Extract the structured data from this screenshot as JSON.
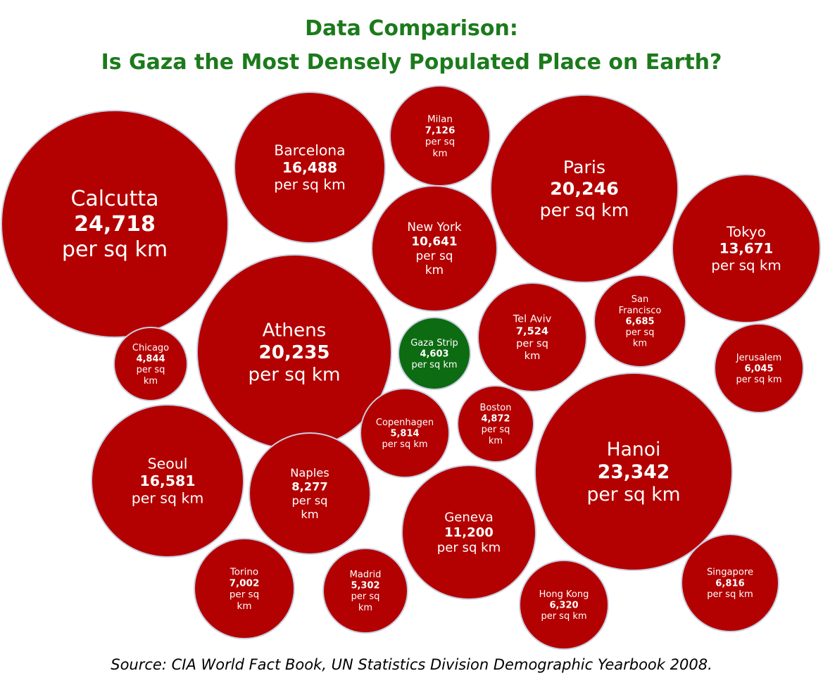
{
  "title": "Data Comparison:",
  "subtitle": "Is Gaza the Most Densely Populated Place on Earth?",
  "source": "Source: CIA World Fact Book, UN Statistics Division Demographic Yearbook 2008.",
  "colors": {
    "city": "#b30000",
    "gaza": "#0d6b12",
    "title": "#1c7a1c",
    "outline": "#c8cfe0"
  },
  "chart_data": {
    "type": "bubble",
    "unit": "per sq km",
    "points": [
      {
        "name": "Calcutta",
        "value": 24718,
        "display_value": "24,718",
        "unit_lines": [
          "per sq km"
        ]
      },
      {
        "name": "Barcelona",
        "value": 16488,
        "display_value": "16,488",
        "unit_lines": [
          "per sq km"
        ]
      },
      {
        "name": "Milan",
        "value": 7126,
        "display_value": "7,126",
        "unit_lines": [
          "per sq",
          "km"
        ]
      },
      {
        "name": "Paris",
        "value": 20246,
        "display_value": "20,246",
        "unit_lines": [
          "per sq km"
        ]
      },
      {
        "name": "Tokyo",
        "value": 13671,
        "display_value": "13,671",
        "unit_lines": [
          "per sq km"
        ]
      },
      {
        "name": "New York",
        "value": 10641,
        "display_value": "10,641",
        "unit_lines": [
          "per sq",
          "km"
        ]
      },
      {
        "name": "Athens",
        "value": 20235,
        "display_value": "20,235",
        "unit_lines": [
          "per sq km"
        ]
      },
      {
        "name": "Chicago",
        "value": 4844,
        "display_value": "4,844",
        "unit_lines": [
          "per sq",
          "km"
        ]
      },
      {
        "name": "Gaza Strip",
        "value": 4603,
        "display_value": "4,603",
        "unit_lines": [
          "per sq km"
        ],
        "highlight": true
      },
      {
        "name": "Tel Aviv",
        "value": 7524,
        "display_value": "7,524",
        "unit_lines": [
          "per sq",
          "km"
        ]
      },
      {
        "name": "San Francisco",
        "name_lines": [
          "San",
          "Francisco"
        ],
        "value": 6685,
        "display_value": "6,685",
        "unit_lines": [
          "per sq",
          "km"
        ]
      },
      {
        "name": "Jerusalem",
        "value": 6045,
        "display_value": "6,045",
        "unit_lines": [
          "per sq km"
        ]
      },
      {
        "name": "Copenhagen",
        "value": 5814,
        "display_value": "5,814",
        "unit_lines": [
          "per sq km"
        ]
      },
      {
        "name": "Boston",
        "value": 4872,
        "display_value": "4,872",
        "unit_lines": [
          "per sq",
          "km"
        ]
      },
      {
        "name": "Hanoi",
        "value": 23342,
        "display_value": "23,342",
        "unit_lines": [
          "per sq km"
        ]
      },
      {
        "name": "Seoul",
        "value": 16581,
        "display_value": "16,581",
        "unit_lines": [
          "per sq km"
        ]
      },
      {
        "name": "Naples",
        "value": 8277,
        "display_value": "8,277",
        "unit_lines": [
          "per sq",
          "km"
        ]
      },
      {
        "name": "Geneva",
        "value": 11200,
        "display_value": "11,200",
        "unit_lines": [
          "per sq km"
        ]
      },
      {
        "name": "Torino",
        "value": 7002,
        "display_value": "7,002",
        "unit_lines": [
          "per sq",
          "km"
        ]
      },
      {
        "name": "Madrid",
        "value": 5302,
        "display_value": "5,302",
        "unit_lines": [
          "per sq",
          "km"
        ]
      },
      {
        "name": "Hong Kong",
        "value": 6320,
        "display_value": "6,320",
        "unit_lines": [
          "per sq km"
        ]
      },
      {
        "name": "Singapore",
        "value": 6816,
        "display_value": "6,816",
        "unit_lines": [
          "per sq km"
        ]
      }
    ]
  }
}
